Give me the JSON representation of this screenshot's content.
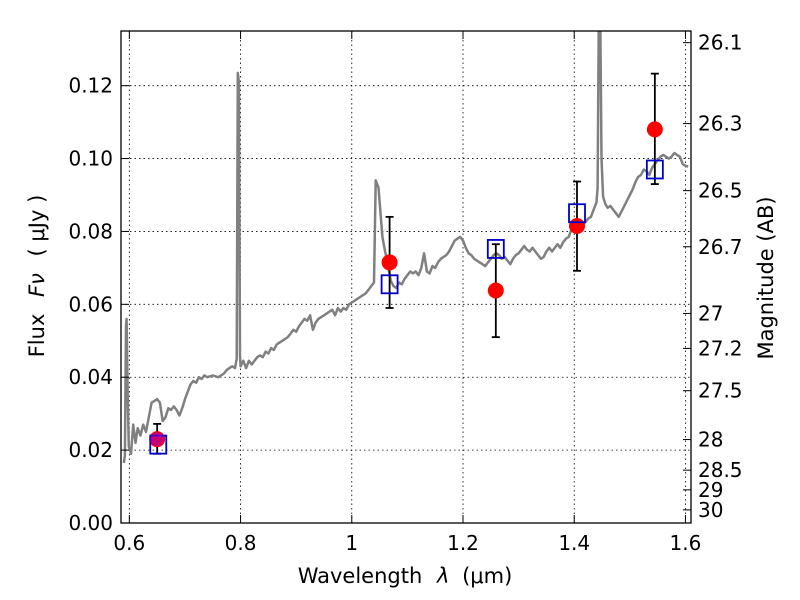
{
  "chart_data": {
    "type": "scatter",
    "xlabel": "Wavelength",
    "xlabel_symbol": "λ",
    "xlabel_unit": "(μm)",
    "ylabel": "Flux",
    "ylabel_symbol": "Fν",
    "ylabel_unit": "( μJy )",
    "ylabel_right": "Magnitude (AB)",
    "xlim": [
      0.585,
      1.61
    ],
    "ylim": [
      0.0,
      0.135
    ],
    "grid": true,
    "x_ticks": [
      {
        "value": 0.6,
        "label": "0.6"
      },
      {
        "value": 0.8,
        "label": "0.8"
      },
      {
        "value": 1.0,
        "label": "1"
      },
      {
        "value": 1.2,
        "label": "1.2"
      },
      {
        "value": 1.4,
        "label": "1.4"
      },
      {
        "value": 1.6,
        "label": "1.6"
      }
    ],
    "y_ticks": [
      {
        "value": 0.0,
        "label": "0.00"
      },
      {
        "value": 0.02,
        "label": "0.02"
      },
      {
        "value": 0.04,
        "label": "0.04"
      },
      {
        "value": 0.06,
        "label": "0.06"
      },
      {
        "value": 0.08,
        "label": "0.08"
      },
      {
        "value": 0.1,
        "label": "0.10"
      },
      {
        "value": 0.12,
        "label": "0.12"
      }
    ],
    "y_right_ticks": [
      {
        "label": "26.1",
        "flux": 0.1318
      },
      {
        "label": "26.3",
        "flux": 0.1096
      },
      {
        "label": "26.5",
        "flux": 0.0912
      },
      {
        "label": "26.7",
        "flux": 0.0758
      },
      {
        "label": "27",
        "flux": 0.0575
      },
      {
        "label": "27.2",
        "flux": 0.0479
      },
      {
        "label": "27.5",
        "flux": 0.0363
      },
      {
        "label": "28",
        "flux": 0.0229
      },
      {
        "label": "28.5",
        "flux": 0.0145
      },
      {
        "label": "29",
        "flux": 0.0091
      },
      {
        "label": "30",
        "flux": 0.0036
      }
    ],
    "series": [
      {
        "kind": "line",
        "color": "#808080",
        "points": [
          [
            0.59,
            0.0165
          ],
          [
            0.592,
            0.0185
          ],
          [
            0.594,
            0.054
          ],
          [
            0.595,
            0.056
          ],
          [
            0.597,
            0.035
          ],
          [
            0.599,
            0.021
          ],
          [
            0.603,
            0.019
          ],
          [
            0.607,
            0.027
          ],
          [
            0.611,
            0.022
          ],
          [
            0.615,
            0.026
          ],
          [
            0.62,
            0.024
          ],
          [
            0.625,
            0.027
          ],
          [
            0.63,
            0.025
          ],
          [
            0.635,
            0.029
          ],
          [
            0.64,
            0.033
          ],
          [
            0.645,
            0.0335
          ],
          [
            0.65,
            0.034
          ],
          [
            0.655,
            0.033
          ],
          [
            0.66,
            0.028
          ],
          [
            0.665,
            0.029
          ],
          [
            0.67,
            0.0315
          ],
          [
            0.675,
            0.031
          ],
          [
            0.68,
            0.032
          ],
          [
            0.685,
            0.031
          ],
          [
            0.69,
            0.0295
          ],
          [
            0.695,
            0.0315
          ],
          [
            0.7,
            0.034
          ],
          [
            0.705,
            0.036
          ],
          [
            0.71,
            0.038
          ],
          [
            0.715,
            0.039
          ],
          [
            0.72,
            0.0385
          ],
          [
            0.725,
            0.04
          ],
          [
            0.73,
            0.0395
          ],
          [
            0.735,
            0.0405
          ],
          [
            0.74,
            0.04
          ],
          [
            0.75,
            0.0405
          ],
          [
            0.76,
            0.04
          ],
          [
            0.77,
            0.041
          ],
          [
            0.775,
            0.042
          ],
          [
            0.78,
            0.0425
          ],
          [
            0.785,
            0.043
          ],
          [
            0.79,
            0.0425
          ],
          [
            0.793,
            0.045
          ],
          [
            0.795,
            0.1235
          ],
          [
            0.797,
            0.121
          ],
          [
            0.799,
            0.046
          ],
          [
            0.8,
            0.043
          ],
          [
            0.805,
            0.0445
          ],
          [
            0.81,
            0.0425
          ],
          [
            0.815,
            0.0445
          ],
          [
            0.82,
            0.0435
          ],
          [
            0.825,
            0.0445
          ],
          [
            0.83,
            0.0455
          ],
          [
            0.835,
            0.046
          ],
          [
            0.84,
            0.0455
          ],
          [
            0.845,
            0.047
          ],
          [
            0.85,
            0.0465
          ],
          [
            0.855,
            0.048
          ],
          [
            0.86,
            0.0475
          ],
          [
            0.865,
            0.049
          ],
          [
            0.87,
            0.0495
          ],
          [
            0.875,
            0.05
          ],
          [
            0.88,
            0.0505
          ],
          [
            0.885,
            0.051
          ],
          [
            0.89,
            0.052
          ],
          [
            0.895,
            0.053
          ],
          [
            0.9,
            0.0525
          ],
          [
            0.905,
            0.054
          ],
          [
            0.91,
            0.055
          ],
          [
            0.915,
            0.056
          ],
          [
            0.92,
            0.0555
          ],
          [
            0.925,
            0.057
          ],
          [
            0.93,
            0.053
          ],
          [
            0.935,
            0.055
          ],
          [
            0.94,
            0.056
          ],
          [
            0.945,
            0.0565
          ],
          [
            0.95,
            0.057
          ],
          [
            0.955,
            0.0575
          ],
          [
            0.96,
            0.058
          ],
          [
            0.965,
            0.0585
          ],
          [
            0.97,
            0.057
          ],
          [
            0.975,
            0.059
          ],
          [
            0.98,
            0.058
          ],
          [
            0.985,
            0.059
          ],
          [
            0.99,
            0.0585
          ],
          [
            0.995,
            0.06
          ],
          [
            1.0,
            0.0605
          ],
          [
            1.005,
            0.061
          ],
          [
            1.01,
            0.0615
          ],
          [
            1.015,
            0.062
          ],
          [
            1.02,
            0.0625
          ],
          [
            1.025,
            0.063
          ],
          [
            1.03,
            0.064
          ],
          [
            1.035,
            0.065
          ],
          [
            1.04,
            0.066
          ],
          [
            1.043,
            0.094
          ],
          [
            1.048,
            0.092
          ],
          [
            1.055,
            0.0785
          ],
          [
            1.06,
            0.0745
          ],
          [
            1.065,
            0.071
          ],
          [
            1.07,
            0.0665
          ],
          [
            1.075,
            0.065
          ],
          [
            1.08,
            0.0645
          ],
          [
            1.085,
            0.066
          ],
          [
            1.09,
            0.0655
          ],
          [
            1.095,
            0.067
          ],
          [
            1.1,
            0.068
          ],
          [
            1.105,
            0.069
          ],
          [
            1.11,
            0.0685
          ],
          [
            1.115,
            0.069
          ],
          [
            1.12,
            0.068
          ],
          [
            1.125,
            0.07
          ],
          [
            1.13,
            0.074
          ],
          [
            1.135,
            0.069
          ],
          [
            1.14,
            0.0685
          ],
          [
            1.145,
            0.0705
          ],
          [
            1.15,
            0.07
          ],
          [
            1.155,
            0.0715
          ],
          [
            1.16,
            0.0725
          ],
          [
            1.165,
            0.073
          ],
          [
            1.17,
            0.0735
          ],
          [
            1.175,
            0.0745
          ],
          [
            1.18,
            0.076
          ],
          [
            1.185,
            0.0775
          ],
          [
            1.19,
            0.078
          ],
          [
            1.195,
            0.0785
          ],
          [
            1.2,
            0.0775
          ],
          [
            1.205,
            0.0755
          ],
          [
            1.21,
            0.074
          ],
          [
            1.215,
            0.0735
          ],
          [
            1.22,
            0.0725
          ],
          [
            1.225,
            0.072
          ],
          [
            1.23,
            0.0715
          ],
          [
            1.235,
            0.071
          ],
          [
            1.24,
            0.0705
          ],
          [
            1.245,
            0.0715
          ],
          [
            1.25,
            0.0725
          ],
          [
            1.255,
            0.0735
          ],
          [
            1.26,
            0.074
          ],
          [
            1.265,
            0.0735
          ],
          [
            1.27,
            0.0725
          ],
          [
            1.275,
            0.073
          ],
          [
            1.28,
            0.072
          ],
          [
            1.285,
            0.071
          ],
          [
            1.29,
            0.0725
          ],
          [
            1.295,
            0.0735
          ],
          [
            1.3,
            0.074
          ],
          [
            1.305,
            0.075
          ],
          [
            1.31,
            0.076
          ],
          [
            1.315,
            0.075
          ],
          [
            1.32,
            0.0745
          ],
          [
            1.325,
            0.0755
          ],
          [
            1.33,
            0.0745
          ],
          [
            1.335,
            0.0735
          ],
          [
            1.34,
            0.0725
          ],
          [
            1.345,
            0.073
          ],
          [
            1.35,
            0.0745
          ],
          [
            1.355,
            0.0755
          ],
          [
            1.36,
            0.0745
          ],
          [
            1.365,
            0.0755
          ],
          [
            1.37,
            0.0765
          ],
          [
            1.375,
            0.0755
          ],
          [
            1.38,
            0.077
          ],
          [
            1.385,
            0.078
          ],
          [
            1.39,
            0.0785
          ],
          [
            1.395,
            0.0805
          ],
          [
            1.4,
            0.0815
          ],
          [
            1.405,
            0.082
          ],
          [
            1.41,
            0.081
          ],
          [
            1.415,
            0.082
          ],
          [
            1.42,
            0.0825
          ],
          [
            1.425,
            0.0835
          ],
          [
            1.43,
            0.084
          ],
          [
            1.435,
            0.086
          ],
          [
            1.44,
            0.088
          ],
          [
            1.442,
            0.092
          ],
          [
            1.444,
            0.135
          ],
          [
            1.447,
            0.135
          ],
          [
            1.449,
            0.1
          ],
          [
            1.452,
            0.0895
          ],
          [
            1.456,
            0.0875
          ],
          [
            1.46,
            0.0865
          ],
          [
            1.465,
            0.087
          ],
          [
            1.47,
            0.086
          ],
          [
            1.475,
            0.085
          ],
          [
            1.48,
            0.084
          ],
          [
            1.485,
            0.0855
          ],
          [
            1.49,
            0.087
          ],
          [
            1.495,
            0.0885
          ],
          [
            1.5,
            0.09
          ],
          [
            1.505,
            0.0915
          ],
          [
            1.51,
            0.0935
          ],
          [
            1.515,
            0.095
          ],
          [
            1.52,
            0.0955
          ],
          [
            1.525,
            0.097
          ],
          [
            1.53,
            0.0965
          ],
          [
            1.535,
            0.0955
          ],
          [
            1.54,
            0.0975
          ],
          [
            1.545,
            0.0985
          ],
          [
            1.55,
            0.0995
          ],
          [
            1.555,
            0.1005
          ],
          [
            1.56,
            0.101
          ],
          [
            1.565,
            0.1005
          ],
          [
            1.57,
            0.1
          ],
          [
            1.575,
            0.1005
          ],
          [
            1.58,
            0.1015
          ],
          [
            1.585,
            0.101
          ],
          [
            1.59,
            0.1005
          ],
          [
            1.595,
            0.0985
          ],
          [
            1.6,
            0.098
          ],
          [
            1.605,
            0.0978
          ]
        ]
      },
      {
        "kind": "observed",
        "color": "#ff0000",
        "marker": "circle",
        "points": [
          {
            "x": 0.65,
            "y": 0.023,
            "err_low": 0.019,
            "err_high": 0.0272
          },
          {
            "x": 1.068,
            "y": 0.0715,
            "err_low": 0.059,
            "err_high": 0.084
          },
          {
            "x": 1.259,
            "y": 0.0638,
            "err_low": 0.051,
            "err_high": 0.0765
          },
          {
            "x": 1.405,
            "y": 0.0815,
            "err_low": 0.0692,
            "err_high": 0.0937
          },
          {
            "x": 1.545,
            "y": 0.108,
            "err_low": 0.093,
            "err_high": 0.1233
          }
        ]
      },
      {
        "kind": "model",
        "color": "#0000cc",
        "marker": "square",
        "points": [
          {
            "x": 0.652,
            "y": 0.0215
          },
          {
            "x": 1.068,
            "y": 0.0655
          },
          {
            "x": 1.259,
            "y": 0.0752
          },
          {
            "x": 1.405,
            "y": 0.085
          },
          {
            "x": 1.545,
            "y": 0.097
          }
        ]
      }
    ]
  }
}
